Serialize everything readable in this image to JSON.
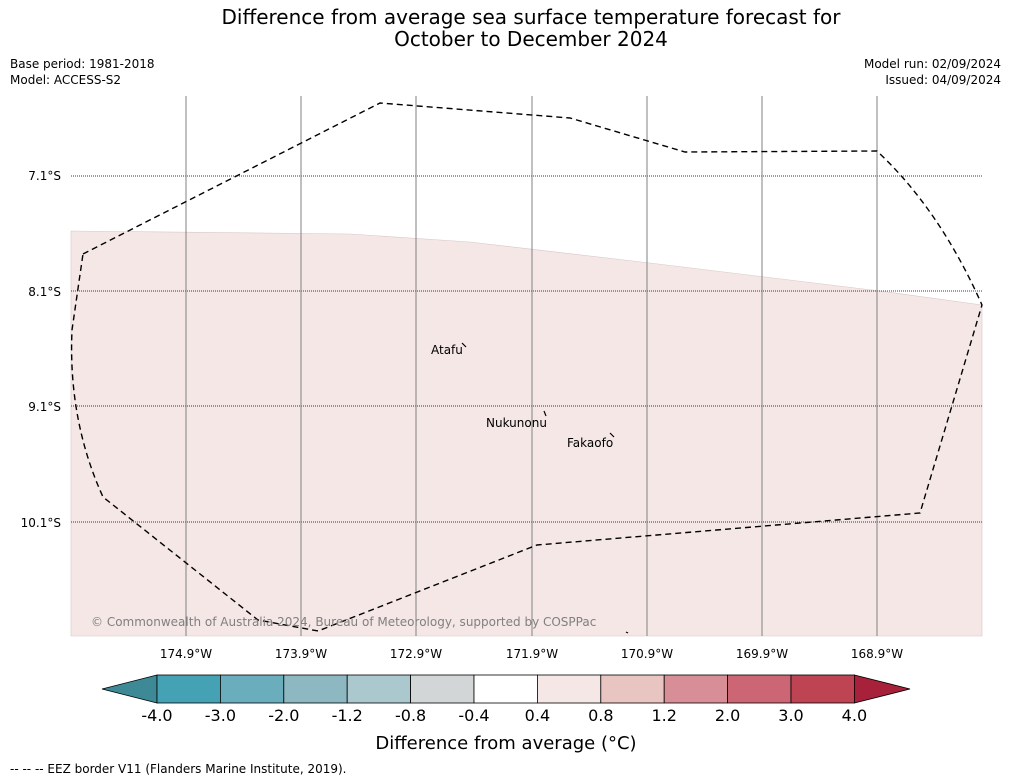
{
  "title_line1": "Difference from average sea surface temperature forecast for",
  "title_line2": "October to December 2024",
  "base_period": "Base period: 1981-2018",
  "model": "Model: ACCESS-S2",
  "model_run": "Model run: 02/09/2024",
  "issued": "Issued: 04/09/2024",
  "copyright": "© Commonwealth of Australia 2024, Bureau of Meteorology, supported by COSPPac",
  "places": [
    "Atafu",
    "Nukunonu",
    "Fakaofo"
  ],
  "lat_labels": [
    "7.1°S",
    "8.1°S",
    "9.1°S",
    "10.1°S"
  ],
  "lon_labels": [
    "174.9°W",
    "173.9°W",
    "172.9°W",
    "171.9°W",
    "170.9°W",
    "169.9°W",
    "168.9°W"
  ],
  "colorbar": {
    "ticks": [
      "-4.0",
      "-3.0",
      "-2.0",
      "-1.2",
      "-0.8",
      "-0.4",
      "0.4",
      "0.8",
      "1.2",
      "2.0",
      "3.0",
      "4.0"
    ],
    "colors": [
      "#3e8996",
      "#45a2b5",
      "#6aadbd",
      "#8db8c1",
      "#aac8cd",
      "#d2d6d7",
      "#ffffff",
      "#f5e7e5",
      "#e8c5c1",
      "#d88e96",
      "#cd6674",
      "#be4454",
      "#a8213a"
    ],
    "label": "Difference from average (°C)"
  },
  "sst_fill_color": "#f4e7e6",
  "legend_text": "--  --  -- EEZ border V11 (Flanders Marine Institute, 2019)."
}
